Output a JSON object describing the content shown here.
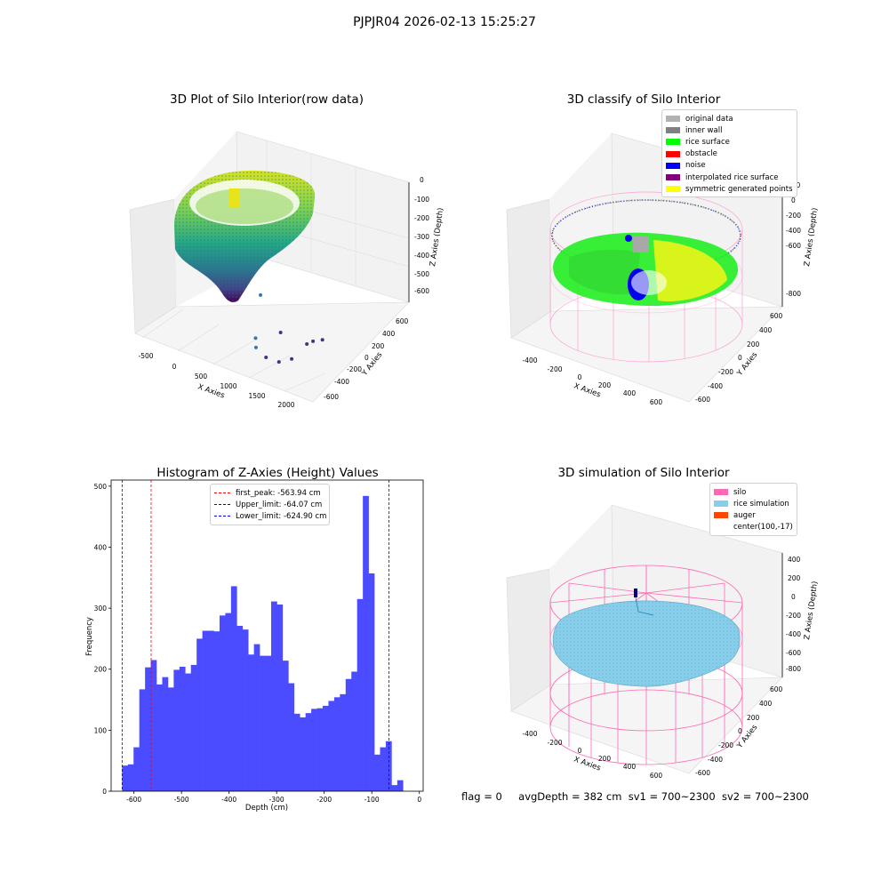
{
  "suptitle": "PJPJR04 2026-02-13 15:25:27",
  "status_line": {
    "flag": "flag = 0",
    "avg": "avgDepth = 382 cm",
    "sv1": "sv1 = 700~2300",
    "sv2": "sv2 = 700~2300"
  },
  "chart_data": [
    {
      "type": "scatter",
      "projection": "3d",
      "title": "3D Plot of Silo Interior(row data)",
      "xlabel": "X Axies",
      "ylabel": "Y Axies",
      "zlabel": "Z Axies (Depth)",
      "x_ticks": [
        "-500",
        "0",
        "500",
        "1000",
        "1500",
        "2000"
      ],
      "y_ticks": [
        "-600",
        "-400",
        "-200",
        "0",
        "200",
        "400",
        "600"
      ],
      "z_ticks": [
        "0",
        "-100",
        "-200",
        "-300",
        "-400",
        "-500",
        "-600"
      ],
      "xlim": [
        -600,
        2100
      ],
      "ylim": [
        -650,
        650
      ],
      "zlim": [
        -650,
        0
      ],
      "colormap": "viridis",
      "outlier_points": [
        {
          "x": 1400,
          "y": -200,
          "z": -560
        },
        {
          "x": 1500,
          "y": -300,
          "z": -580
        },
        {
          "x": 1700,
          "y": -350,
          "z": -600
        },
        {
          "x": 1850,
          "y": -300,
          "z": -620
        },
        {
          "x": 1950,
          "y": -200,
          "z": -610
        },
        {
          "x": 1900,
          "y": 100,
          "z": -600
        },
        {
          "x": 1900,
          "y": 200,
          "z": -610
        },
        {
          "x": 1950,
          "y": 300,
          "z": -620
        },
        {
          "x": 1500,
          "y": 100,
          "z": -590
        },
        {
          "x": 1100,
          "y": 200,
          "z": -420
        }
      ],
      "grid": true
    },
    {
      "type": "scatter",
      "projection": "3d",
      "title": "3D classify of Silo Interior",
      "xlabel": "X Axies",
      "ylabel": "Y Axies",
      "zlabel": "Z Axies (Depth)",
      "x_ticks": [
        "-400",
        "-200",
        "0",
        "200",
        "400",
        "600"
      ],
      "y_ticks": [
        "-600",
        "-400",
        "-200",
        "0",
        "200",
        "400",
        "600"
      ],
      "z_ticks": [
        "200",
        "0",
        "-200",
        "-400",
        "-600",
        "-800"
      ],
      "legend": [
        {
          "label": "original data",
          "color": "#b2b2b2"
        },
        {
          "label": "inner wall",
          "color": "#808080"
        },
        {
          "label": "rice surface",
          "color": "#00ff00"
        },
        {
          "label": "obstacle",
          "color": "#ff0000"
        },
        {
          "label": "noise",
          "color": "#0000ff"
        },
        {
          "label": "interpolated rice surface",
          "color": "#800080"
        },
        {
          "label": "symmetric generated points",
          "color": "#ffff00"
        }
      ],
      "legend_position": "top-right",
      "grid": true
    },
    {
      "type": "bar",
      "title": "Histogram of Z-Axies (Height) Values",
      "xlabel": "Depth (cm)",
      "ylabel": "Frequency",
      "color": "#4b4bff",
      "x_ticks": [
        "-600",
        "-500",
        "-400",
        "-300",
        "-200",
        "-100",
        "0"
      ],
      "y_ticks": [
        "0",
        "100",
        "200",
        "300",
        "400",
        "500"
      ],
      "xlim": [
        -648,
        8
      ],
      "ylim": [
        0,
        510
      ],
      "bin_start": -624.9,
      "bin_width": 12.05,
      "counts": [
        42,
        44,
        72,
        167,
        203,
        215,
        175,
        187,
        170,
        199,
        204,
        193,
        207,
        250,
        263,
        263,
        262,
        288,
        292,
        336,
        271,
        265,
        224,
        241,
        222,
        222,
        311,
        306,
        214,
        177,
        127,
        121,
        128,
        135,
        136,
        140,
        148,
        154,
        159,
        184,
        196,
        315,
        484,
        357,
        60,
        72,
        82,
        10,
        18
      ],
      "lines": [
        {
          "label": "first_peak: -563.94 cm",
          "x": -563.94,
          "color": "#ff0000"
        },
        {
          "label": "Upper_limit: -64.07 cm",
          "x": -64.07,
          "color": "#0000ff"
        },
        {
          "label": "Lower_limit: -624.90 cm",
          "x": -624.9,
          "color": "#0000ff"
        }
      ],
      "legend_position": "top-center"
    },
    {
      "type": "area",
      "projection": "3d",
      "title": "3D simulation of Silo Interior",
      "xlabel": "X Axies",
      "ylabel": "Y Axies",
      "zlabel": "Z Axies (Depth)",
      "x_ticks": [
        "-400",
        "-200",
        "0",
        "200",
        "400",
        "600"
      ],
      "y_ticks": [
        "-600",
        "-400",
        "-200",
        "0",
        "200",
        "400",
        "600"
      ],
      "z_ticks": [
        "400",
        "200",
        "0",
        "-200",
        "-400",
        "-600",
        "-800"
      ],
      "legend": [
        {
          "label": "silo",
          "color": "#ff69b4"
        },
        {
          "label": "rice simulation",
          "color": "#87ceeb"
        },
        {
          "label": "auger",
          "color": "#ff4500"
        },
        {
          "label": "center(100,-17)",
          "color": ""
        }
      ],
      "legend_position": "top-right",
      "grid": true
    }
  ]
}
